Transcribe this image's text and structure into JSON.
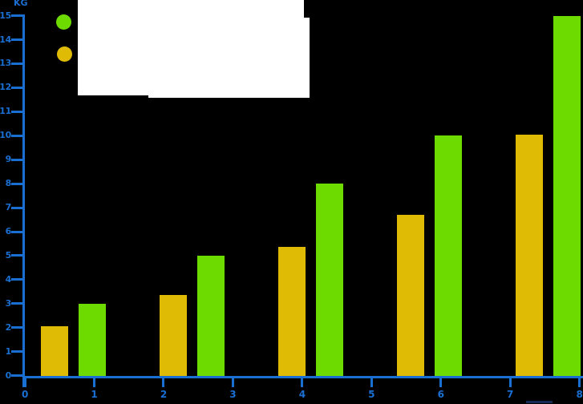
{
  "chart_data": {
    "type": "bar",
    "title": "",
    "ylabel": "KG",
    "xlabel": "",
    "xlim": [
      0,
      8
    ],
    "ylim": [
      0,
      15
    ],
    "x_ticks": [
      0,
      1,
      2,
      3,
      4,
      5,
      6,
      7,
      8
    ],
    "y_ticks": [
      0,
      1,
      2,
      3,
      4,
      5,
      6,
      7,
      8,
      9,
      10,
      11,
      12,
      13,
      14,
      15
    ],
    "grid": false,
    "legend_position": "top-left",
    "categories": [
      1,
      2,
      3,
      4,
      5
    ],
    "series": [
      {
        "name": "gold",
        "color": "#DFBB06",
        "values": [
          2.05,
          3.35,
          5.35,
          6.7,
          10.05
        ]
      },
      {
        "name": "green",
        "color": "#6EDB00",
        "values": [
          3,
          5,
          8,
          10,
          15
        ]
      }
    ]
  },
  "legend": {
    "entries": [
      {
        "name": "green",
        "color": "#6EDB00",
        "label": ""
      },
      {
        "name": "gold",
        "color": "#DFBB06",
        "label": ""
      }
    ]
  },
  "colors": {
    "background": "#000000",
    "axis": "#1A6FD2",
    "labels": "#1A6FD2",
    "overlay": "#FFFFFF"
  }
}
